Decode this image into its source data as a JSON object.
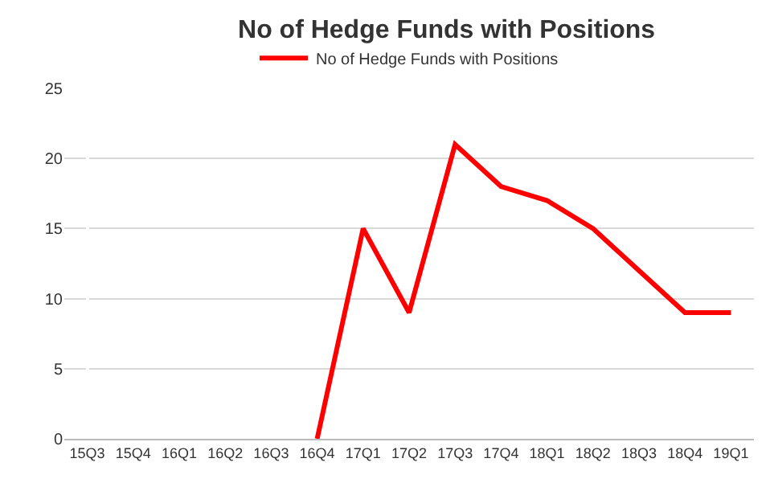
{
  "chart_data": {
    "type": "line",
    "title": "No of Hedge Funds with Positions",
    "categories": [
      "15Q3",
      "15Q4",
      "16Q1",
      "16Q2",
      "16Q3",
      "16Q4",
      "17Q1",
      "17Q2",
      "17Q3",
      "17Q4",
      "18Q1",
      "18Q2",
      "18Q3",
      "18Q4",
      "19Q1"
    ],
    "series": [
      {
        "name": "No of Hedge Funds with Positions",
        "color": "#ff0000",
        "values": [
          null,
          null,
          null,
          null,
          null,
          0,
          15,
          9,
          21,
          18,
          17,
          15,
          12,
          9,
          9
        ]
      }
    ],
    "ylim": [
      0,
      25
    ],
    "yticks": [
      0,
      5,
      10,
      15,
      20,
      25
    ],
    "grid": "y",
    "legend": "top",
    "marker": "none",
    "line_style": "solid"
  }
}
